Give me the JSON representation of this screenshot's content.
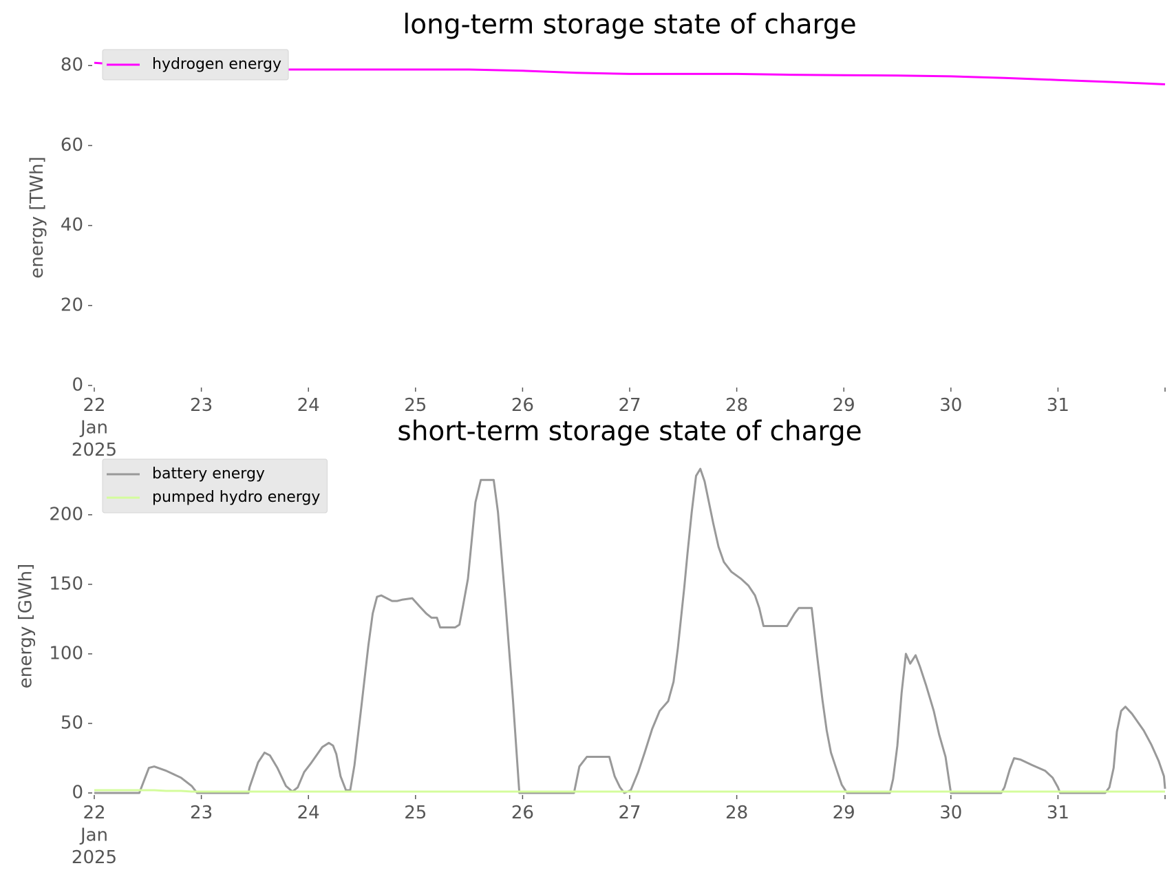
{
  "chart_data": [
    {
      "type": "line",
      "title": "long-term storage state of charge",
      "ylabel": "energy [TWh]",
      "x": [
        22,
        22.5,
        23,
        23.5,
        24,
        24.5,
        25,
        25.5,
        26,
        26.5,
        27,
        27.5,
        28,
        28.5,
        29,
        29.5,
        30,
        30.5,
        31,
        31.5,
        32
      ],
      "series": [
        {
          "name": "hydrogen energy",
          "color": "#ff00ff",
          "values": [
            80.7,
            79.8,
            79.2,
            79.0,
            79.0,
            79.0,
            79.0,
            79.0,
            78.7,
            78.2,
            77.9,
            77.9,
            77.9,
            77.7,
            77.6,
            77.5,
            77.3,
            76.9,
            76.4,
            75.9,
            75.3
          ]
        }
      ],
      "xlim": [
        22,
        32
      ],
      "xticks": [
        {
          "value": 22,
          "label": "22\nJan\n2025"
        },
        23,
        24,
        25,
        26,
        27,
        28,
        29,
        30,
        31
      ],
      "ylim": [
        0,
        84
      ],
      "yticks": [
        0,
        20,
        40,
        60,
        80
      ],
      "legend": "upper left"
    },
    {
      "type": "line",
      "title": "short-term storage state of charge",
      "ylabel": "energy [GWh]",
      "x": [
        22.0,
        22.42,
        22.51,
        22.56,
        22.67,
        22.81,
        22.91,
        22.96,
        23.44,
        23.45,
        23.53,
        23.59,
        23.64,
        23.71,
        23.79,
        23.85,
        23.9,
        23.96,
        24.02,
        24.13,
        24.19,
        24.23,
        24.26,
        24.3,
        24.35,
        24.39,
        24.43,
        24.49,
        24.56,
        24.6,
        24.64,
        24.68,
        24.78,
        24.83,
        24.88,
        24.97,
        25.04,
        25.1,
        25.15,
        25.2,
        25.23,
        25.37,
        25.41,
        25.44,
        25.49,
        25.56,
        25.61,
        25.73,
        25.77,
        25.84,
        25.91,
        25.97,
        26.48,
        26.53,
        26.6,
        26.81,
        26.86,
        26.91,
        26.95,
        27.01,
        27.08,
        27.14,
        27.21,
        27.28,
        27.36,
        27.41,
        27.45,
        27.51,
        27.54,
        27.58,
        27.62,
        27.66,
        27.7,
        27.78,
        27.83,
        27.88,
        27.95,
        28.04,
        28.11,
        28.17,
        28.21,
        28.25,
        28.47,
        28.54,
        28.58,
        28.7,
        28.75,
        28.8,
        28.84,
        28.88,
        28.94,
        28.98,
        29.03,
        29.43,
        29.46,
        29.5,
        29.54,
        29.58,
        29.62,
        29.67,
        29.71,
        29.77,
        29.84,
        29.89,
        29.95,
        30.0,
        30.47,
        30.5,
        30.55,
        30.59,
        30.65,
        30.76,
        30.88,
        30.95,
        31.0,
        31.02,
        31.44,
        31.48,
        31.52,
        31.55,
        31.59,
        31.63,
        31.69,
        31.8,
        31.87,
        31.94,
        31.99,
        32.0
      ],
      "series": [
        {
          "name": "battery energy",
          "color": "#999999",
          "values": [
            0,
            0,
            18,
            19,
            16,
            11,
            5,
            0,
            0,
            4,
            22,
            29,
            27,
            18,
            5,
            1,
            4,
            15,
            21,
            33,
            36,
            34,
            28,
            12,
            2,
            2,
            20,
            59,
            106,
            129,
            141,
            142,
            138,
            138,
            139,
            140,
            134,
            129,
            126,
            126,
            119,
            119,
            121,
            133,
            154,
            209,
            225,
            225,
            202,
            137,
            67,
            0,
            0,
            19,
            26,
            26,
            12,
            4,
            0,
            2,
            15,
            29,
            46,
            59,
            66,
            80,
            104,
            148,
            172,
            202,
            228,
            233,
            224,
            194,
            177,
            166,
            159,
            154,
            149,
            142,
            133,
            120,
            120,
            129,
            133,
            133,
            99,
            67,
            45,
            29,
            15,
            6,
            0,
            0,
            10,
            34,
            72,
            100,
            93,
            99,
            91,
            77,
            59,
            42,
            26,
            0,
            0,
            4,
            17,
            25,
            24,
            20,
            16,
            11,
            4,
            0,
            0,
            4,
            18,
            44,
            59,
            62,
            57,
            45,
            35,
            23,
            12,
            3
          ]
        },
        {
          "name": "pumped hydro energy",
          "color": "#d4fc9c",
          "values": [
            2,
            2,
            2,
            2,
            1.5,
            1.5,
            1,
            1,
            1,
            1,
            1,
            1,
            1,
            1,
            1,
            1,
            1,
            1,
            1,
            1,
            1,
            1,
            1,
            1,
            1,
            1,
            1,
            1,
            1,
            1,
            1,
            1,
            1,
            1,
            1,
            1,
            1,
            1,
            1,
            1,
            1,
            1,
            1,
            1,
            1,
            1,
            1,
            1,
            1,
            1,
            1,
            1,
            1,
            1,
            1,
            1,
            1,
            1,
            1,
            1,
            1,
            1,
            1,
            1,
            1,
            1,
            1,
            1,
            1,
            1,
            1,
            1,
            1,
            1,
            1,
            1,
            1,
            1,
            1,
            1,
            1,
            1,
            1,
            1,
            1,
            1,
            1,
            1,
            1,
            1,
            1,
            1,
            1,
            1,
            1,
            1,
            1,
            1,
            1,
            1,
            1,
            1,
            1,
            1,
            1,
            1,
            1,
            1,
            1,
            1,
            1,
            1,
            1,
            1,
            1,
            1,
            1,
            1,
            1,
            1,
            1,
            1,
            1,
            1,
            1,
            1,
            1,
            1
          ]
        }
      ],
      "xlim": [
        22,
        32
      ],
      "xticks": [
        {
          "value": 22,
          "label": "22\nJan\n2025"
        },
        23,
        24,
        25,
        26,
        27,
        28,
        29,
        30,
        31
      ],
      "ylim": [
        0,
        240
      ],
      "yticks": [
        0,
        50,
        100,
        150,
        200
      ],
      "legend": "upper left"
    }
  ]
}
